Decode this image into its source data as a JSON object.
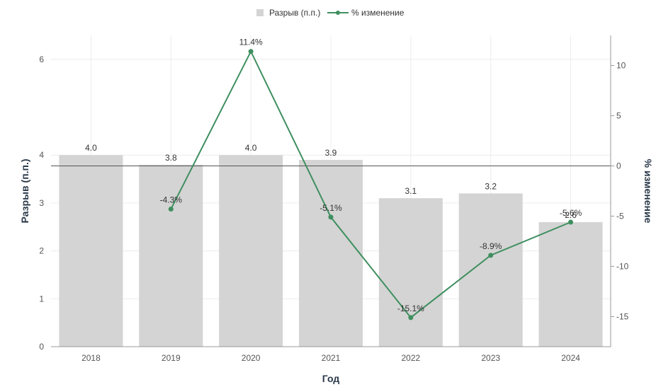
{
  "chart_data": {
    "type": "bar",
    "categories": [
      "2018",
      "2019",
      "2020",
      "2021",
      "2022",
      "2023",
      "2024"
    ],
    "series": [
      {
        "name": "Разрыв (п.п.)",
        "type": "bar",
        "axis": "left",
        "color": "#d4d4d4",
        "values": [
          4.0,
          3.8,
          4.0,
          3.9,
          3.1,
          3.2,
          2.6
        ],
        "labels": [
          "4.0",
          "3.8",
          "4.0",
          "3.9",
          "3.1",
          "3.2",
          "2.6"
        ]
      },
      {
        "name": "% изменение",
        "type": "line",
        "axis": "right",
        "color": "#3f8f5f",
        "values": [
          null,
          -4.3,
          11.4,
          -5.1,
          -15.1,
          -8.9,
          -5.6
        ],
        "labels": [
          "",
          "-4.3%",
          "11.4%",
          "-5.1%",
          "-15.1%",
          "-8.9%",
          "-5.6%"
        ]
      }
    ],
    "xlabel": "Год",
    "ylabel": "Разрыв (п.п.)",
    "y2label": "% изменение",
    "ylim": [
      0,
      6.5
    ],
    "y2lim": [
      -18,
      13
    ],
    "yticks": [
      "0",
      "1",
      "2",
      "3",
      "4",
      "6"
    ],
    "y2ticks": [
      "-15",
      "-10",
      "-5",
      "0",
      "5",
      "10"
    ],
    "zero_line_right_axis": true,
    "grid": true,
    "legend_position": "top-center"
  }
}
